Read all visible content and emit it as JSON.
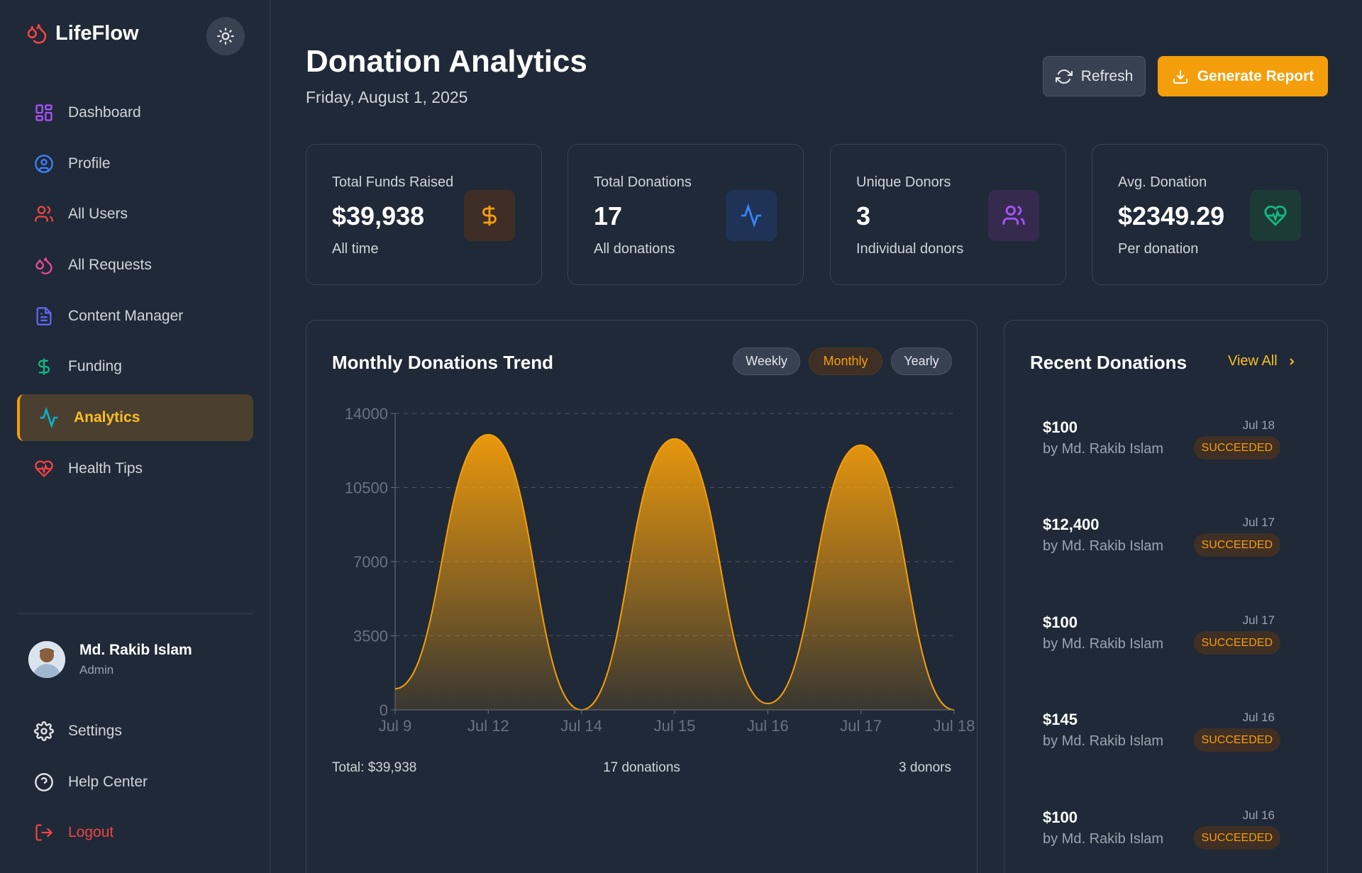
{
  "brand": {
    "name": "LifeFlow"
  },
  "sidebar": {
    "items": [
      {
        "label": "Dashboard"
      },
      {
        "label": "Profile"
      },
      {
        "label": "All Users"
      },
      {
        "label": "All Requests"
      },
      {
        "label": "Content Manager"
      },
      {
        "label": "Funding"
      },
      {
        "label": "Analytics"
      },
      {
        "label": "Health Tips"
      }
    ],
    "user": {
      "name": "Md. Rakib Islam",
      "role": "Admin"
    },
    "bottom": [
      {
        "label": "Settings"
      },
      {
        "label": "Help Center"
      },
      {
        "label": "Logout"
      }
    ]
  },
  "header": {
    "title": "Donation Analytics",
    "date": "Friday, August 1, 2025",
    "refresh_label": "Refresh",
    "report_label": "Generate Report"
  },
  "stats": [
    {
      "label": "Total Funds Raised",
      "value": "$39,938",
      "sub": "All time",
      "icon": "dollar-icon"
    },
    {
      "label": "Total Donations",
      "value": "17",
      "sub": "All donations",
      "icon": "activity-icon"
    },
    {
      "label": "Unique Donors",
      "value": "3",
      "sub": "Individual donors",
      "icon": "users-icon"
    },
    {
      "label": "Avg. Donation",
      "value": "$2349.29",
      "sub": "Per donation",
      "icon": "heart-pulse-icon"
    }
  ],
  "chart": {
    "title": "Monthly Donations Trend",
    "filters": [
      "Weekly",
      "Monthly",
      "Yearly"
    ],
    "active_filter": "Monthly",
    "footer": {
      "total": "Total: $39,938",
      "count": "17 donations",
      "donors": "3 donors"
    }
  },
  "chart_data": {
    "type": "area",
    "title": "Monthly Donations Trend",
    "categories": [
      "Jul 9",
      "Jul 12",
      "Jul 14",
      "Jul 15",
      "Jul 16",
      "Jul 17",
      "Jul 18"
    ],
    "values": [
      1000,
      13000,
      0,
      12800,
      300,
      12500,
      0
    ],
    "ylim": [
      0,
      14000
    ],
    "yticks": [
      0,
      3500,
      7000,
      10500,
      14000
    ],
    "xlabel": "",
    "ylabel": "",
    "color": "#f59e0b"
  },
  "recent": {
    "title": "Recent Donations",
    "view_all": "View All",
    "items": [
      {
        "amount": "$100",
        "by": "by Md. Rakib Islam",
        "date": "Jul 18",
        "status": "SUCCEEDED"
      },
      {
        "amount": "$12,400",
        "by": "by Md. Rakib Islam",
        "date": "Jul 17",
        "status": "SUCCEEDED"
      },
      {
        "amount": "$100",
        "by": "by Md. Rakib Islam",
        "date": "Jul 17",
        "status": "SUCCEEDED"
      },
      {
        "amount": "$145",
        "by": "by Md. Rakib Islam",
        "date": "Jul 16",
        "status": "SUCCEEDED"
      },
      {
        "amount": "$100",
        "by": "by Md. Rakib Islam",
        "date": "Jul 16",
        "status": "SUCCEEDED"
      }
    ]
  },
  "colors": {
    "accent": "#f59e0b",
    "bg": "#1f2937",
    "border": "#374151",
    "danger": "#ef4444"
  }
}
